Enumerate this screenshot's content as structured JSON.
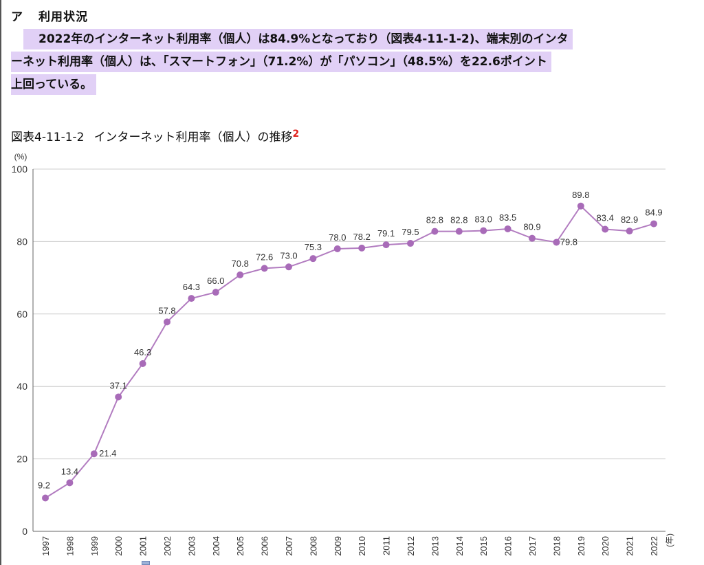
{
  "section": {
    "marker": "ア",
    "title": "利用状況"
  },
  "paragraph": {
    "lines": [
      "2022年のインターネット利用率（個人）は84.9%となっており（図表4-11-1-2)、端末別のインタ",
      "ーネット利用率（個人）は、「スマートフォン」（71.2%）が「パソコン」（48.5%）を22.6ポイント",
      "上回っている。"
    ]
  },
  "figure": {
    "number": "図表4-11-1-2",
    "title": "インターネット利用率（個人）の推移",
    "footnote": "2"
  },
  "colors": {
    "highlight": "#e1d0f6",
    "line": "#b27cc0",
    "marker": "#a86bb8",
    "footnote": "#e0201b",
    "grid": "#cccccc"
  },
  "chart_data": {
    "type": "line",
    "ylabel": "(%)",
    "xlabel": "(年)",
    "ylim": [
      0,
      100
    ],
    "yticks": [
      0,
      20,
      40,
      60,
      80,
      100
    ],
    "grid": true,
    "categories": [
      "1997",
      "1998",
      "1999",
      "2000",
      "2001",
      "2002",
      "2003",
      "2004",
      "2005",
      "2006",
      "2007",
      "2008",
      "2009",
      "2010",
      "2011",
      "2012",
      "2013",
      "2014",
      "2015",
      "2016",
      "2017",
      "2018",
      "2019",
      "2020",
      "2021",
      "2022"
    ],
    "values": [
      9.2,
      13.4,
      21.4,
      37.1,
      46.3,
      57.8,
      64.3,
      66.0,
      70.8,
      72.6,
      73.0,
      75.3,
      78.0,
      78.2,
      79.1,
      79.5,
      82.8,
      82.8,
      83.0,
      83.5,
      80.9,
      79.8,
      89.8,
      83.4,
      82.9,
      84.9
    ],
    "value_labels": [
      "9.2",
      "13.4",
      "21.4",
      "37.1",
      "46.3",
      "57.8",
      "64.3",
      "66.0",
      "70.8",
      "72.6",
      "73.0",
      "75.3",
      "78.0",
      "78.2",
      "79.1",
      "79.5",
      "82.8",
      "82.8",
      "83.0",
      "83.5",
      "80.9",
      "79.8",
      "89.8",
      "83.4",
      "82.9",
      "84.9"
    ]
  }
}
